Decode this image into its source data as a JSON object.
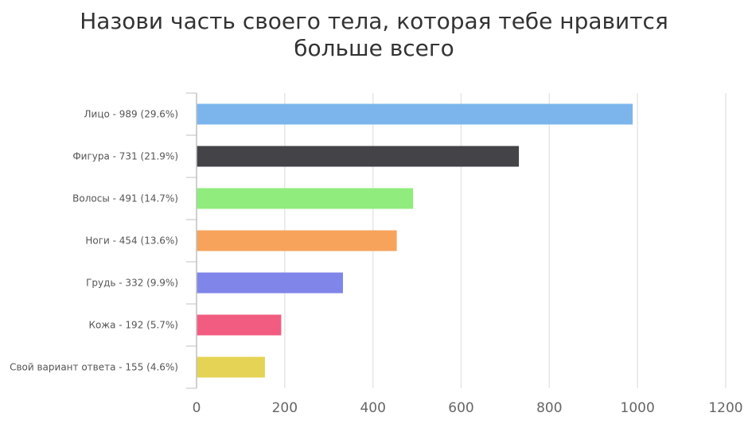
{
  "chart_data": {
    "type": "bar",
    "orientation": "horizontal",
    "title": "Назови часть своего тела, которая тебе нравится больше всего",
    "categories": [
      "Лицо - 989 (29.6%)",
      "Фигура - 731 (21.9%)",
      "Волосы - 491 (14.7%)",
      "Ноги - 454 (13.6%)",
      "Грудь - 332 (9.9%)",
      "Кожа - 192 (5.7%)",
      "Свой вариант ответа - 155 (4.6%)"
    ],
    "values": [
      989,
      731,
      491,
      454,
      332,
      192,
      155
    ],
    "colors": [
      "#7cb5ec",
      "#434348",
      "#90ed7d",
      "#f7a35c",
      "#8085e9",
      "#f15c80",
      "#e4d354"
    ],
    "xticks": [
      "0",
      "200",
      "400",
      "600",
      "800",
      "1000",
      "1200"
    ],
    "xlim": [
      0,
      1200
    ],
    "grid": true,
    "legend": "none"
  }
}
